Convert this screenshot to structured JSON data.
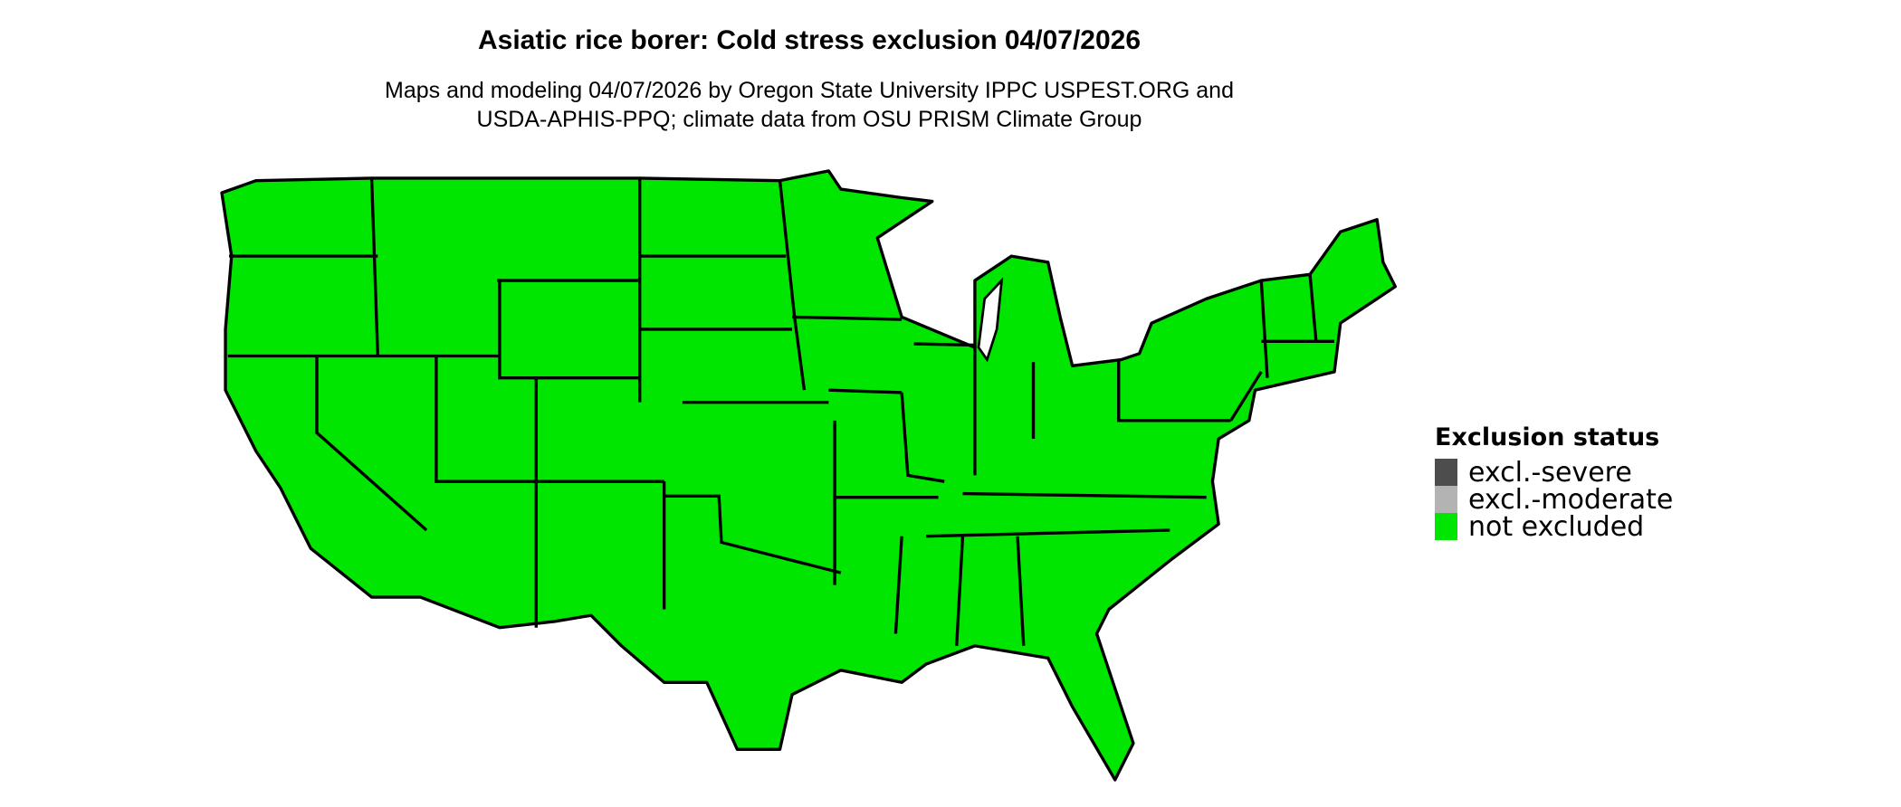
{
  "title": "Asiatic rice borer: Cold stress exclusion 04/07/2026",
  "subtitle_line1": "Maps and modeling 04/07/2026 by Oregon State University IPPC USPEST.ORG and",
  "subtitle_line2": "USDA-APHIS-PPQ; climate data from OSU PRISM Climate Group",
  "map": {
    "region": "Contiguous United States",
    "fill_status": "not excluded",
    "fill_color": "#00e600",
    "border_color": "#000000"
  },
  "legend": {
    "title": "Exclusion status",
    "items": [
      {
        "label": "excl.-severe",
        "color": "#4d4d4d"
      },
      {
        "label": "excl.-moderate",
        "color": "#b3b3b3"
      },
      {
        "label": "not excluded",
        "color": "#00e600"
      }
    ]
  }
}
